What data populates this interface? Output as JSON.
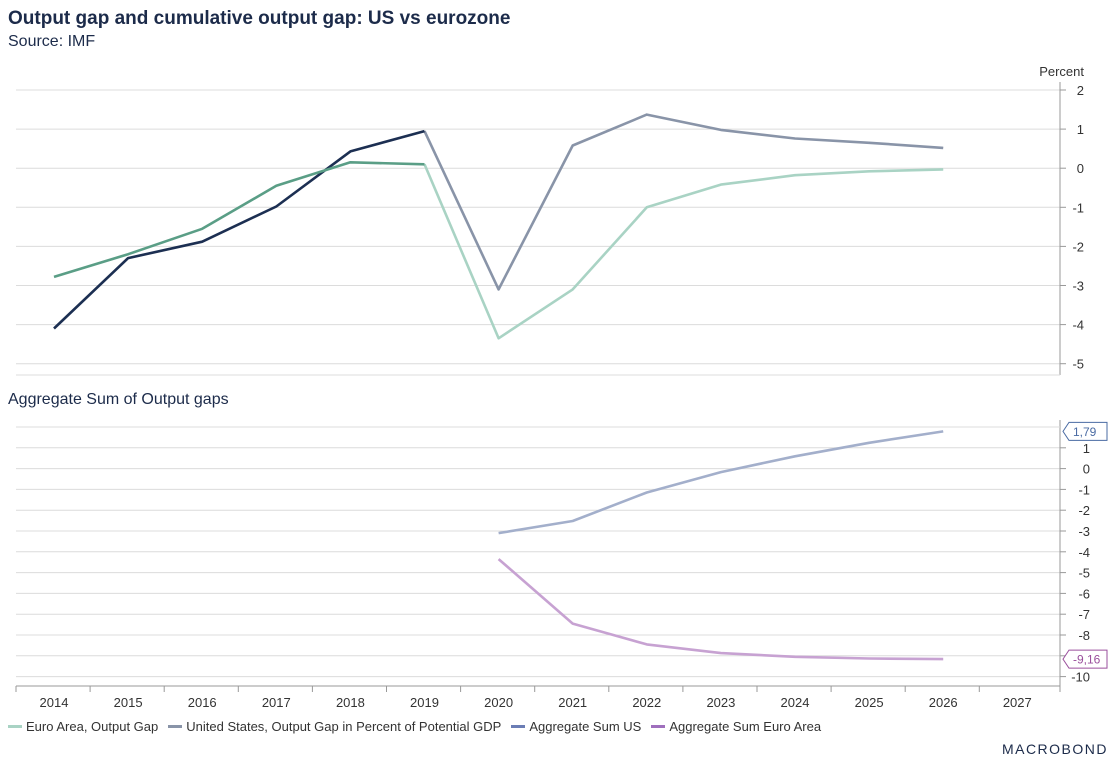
{
  "title": "Output gap and cumulative output gap: US vs eurozone",
  "subtitle": "Source: IMF",
  "logo": "MACROBOND",
  "chart_data": [
    {
      "type": "line",
      "ylabel": "Percent",
      "ylim": [
        -5,
        2
      ],
      "yticks": [
        2,
        1,
        0,
        -1,
        -2,
        -3,
        -4,
        -5
      ],
      "x": [
        2014,
        2015,
        2016,
        2017,
        2018,
        2019,
        2020,
        2021,
        2022,
        2023,
        2024,
        2025,
        2026
      ],
      "series": [
        {
          "name": "Euro Area, Output Gap",
          "color": "#5a9e86",
          "projection_color": "#a9d3c4",
          "values": [
            -2.78,
            -2.2,
            -1.55,
            -0.45,
            0.15,
            0.1,
            -4.35,
            -3.1,
            -1.0,
            -0.42,
            -0.18,
            -0.08,
            -0.03
          ]
        },
        {
          "name": "United States, Output Gap in Percent of Potential GDP",
          "color": "#1c2f52",
          "projection_color": "#8994a8",
          "values": [
            -4.1,
            -2.3,
            -1.88,
            -0.98,
            0.43,
            0.95,
            -3.1,
            0.58,
            1.37,
            0.98,
            0.76,
            0.65,
            0.52
          ]
        }
      ],
      "projection_from": 2019
    },
    {
      "type": "line",
      "title": "Aggregate Sum of Output gaps",
      "ylim": [
        -10,
        2
      ],
      "yticks": [
        1,
        0,
        -1,
        -2,
        -3,
        -4,
        -5,
        -6,
        -7,
        -8,
        -9,
        -10
      ],
      "x": [
        2020,
        2021,
        2022,
        2023,
        2024,
        2025,
        2026
      ],
      "series": [
        {
          "name": "Aggregate Sum US",
          "color": "#a3afcb",
          "values": [
            -3.1,
            -2.52,
            -1.15,
            -0.17,
            0.59,
            1.24,
            1.79
          ],
          "end_label": "1,79"
        },
        {
          "name": "Aggregate Sum Euro Area",
          "color": "#c7a2d2",
          "values": [
            -4.35,
            -7.45,
            -8.45,
            -8.87,
            -9.05,
            -9.13,
            -9.16
          ],
          "end_label": "-9,16"
        }
      ]
    }
  ],
  "x_axis": {
    "ticks": [
      2014,
      2015,
      2016,
      2017,
      2018,
      2019,
      2020,
      2021,
      2022,
      2023,
      2024,
      2025,
      2026,
      2027
    ]
  },
  "legend": [
    {
      "label": "Euro Area, Output Gap",
      "color": "#a9d3c4"
    },
    {
      "label": "United States, Output Gap in Percent of Potential GDP",
      "color": "#8994a8"
    },
    {
      "label": "Aggregate Sum US",
      "color": "#6b7db5"
    },
    {
      "label": "Aggregate Sum Euro Area",
      "color": "#9f6fbd"
    }
  ],
  "end_label_colors": {
    "us": "#4a6ba3",
    "euro": "#9a4f9c"
  }
}
